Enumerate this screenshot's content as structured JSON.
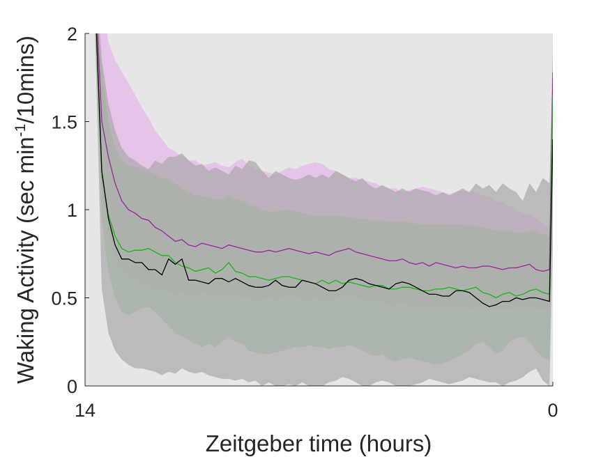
{
  "chart_data": {
    "type": "line",
    "xlabel": "Zeitgeber time (hours)",
    "ylabel": {
      "prefix": "Waking Activity (sec min",
      "superscript": "-1",
      "suffix": "/10mins)"
    },
    "xlim": [
      14,
      0
    ],
    "ylim": [
      0,
      2
    ],
    "x_ticks": [
      14,
      0
    ],
    "x_tick_labels": [
      "14",
      "0"
    ],
    "y_ticks": [
      0,
      0.5,
      1,
      1.5,
      2
    ],
    "y_tick_labels": [
      "0",
      "0.5",
      "1",
      "1.5",
      "2"
    ],
    "grid": false,
    "legend": "none",
    "background_color": "#e6e6e6",
    "x": [
      13.7,
      13.5,
      13.3,
      13.1,
      12.9,
      12.7,
      12.5,
      12.3,
      12.1,
      11.9,
      11.7,
      11.5,
      11.3,
      11.1,
      10.9,
      10.7,
      10.5,
      10.3,
      10.1,
      9.9,
      9.7,
      9.5,
      9.3,
      9.1,
      8.9,
      8.7,
      8.5,
      8.3,
      8.1,
      7.9,
      7.7,
      7.5,
      7.3,
      7.1,
      6.9,
      6.7,
      6.5,
      6.3,
      6.1,
      5.9,
      5.7,
      5.5,
      5.3,
      5.1,
      4.9,
      4.7,
      4.5,
      4.3,
      4.1,
      3.9,
      3.7,
      3.5,
      3.3,
      3.1,
      2.9,
      2.7,
      2.5,
      2.3,
      2.1,
      1.9,
      1.7,
      1.5,
      1.3,
      1.1,
      0.9,
      0.7,
      0.5,
      0.3,
      0.1,
      0.0
    ],
    "series": [
      {
        "color": "#a020a0",
        "band_color": "#e6b4e8",
        "values": [
          2.3,
          1.5,
          1.3,
          1.15,
          1.05,
          1.0,
          0.98,
          0.95,
          0.94,
          0.9,
          0.88,
          0.85,
          0.82,
          0.83,
          0.8,
          0.79,
          0.81,
          0.8,
          0.79,
          0.78,
          0.8,
          0.79,
          0.78,
          0.77,
          0.76,
          0.76,
          0.77,
          0.76,
          0.77,
          0.78,
          0.77,
          0.76,
          0.75,
          0.76,
          0.75,
          0.74,
          0.76,
          0.77,
          0.78,
          0.76,
          0.75,
          0.74,
          0.73,
          0.72,
          0.71,
          0.71,
          0.72,
          0.7,
          0.69,
          0.7,
          0.68,
          0.7,
          0.69,
          0.68,
          0.67,
          0.68,
          0.67,
          0.67,
          0.68,
          0.68,
          0.67,
          0.66,
          0.67,
          0.67,
          0.68,
          0.69,
          0.66,
          0.65,
          0.66,
          1.78
        ],
        "upper": [
          2.6,
          2.2,
          1.95,
          1.85,
          1.78,
          1.72,
          1.65,
          1.58,
          1.52,
          1.45,
          1.4,
          1.35,
          1.33,
          1.3,
          1.28,
          1.28,
          1.25,
          1.26,
          1.27,
          1.25,
          1.24,
          1.27,
          1.29,
          1.25,
          1.23,
          1.22,
          1.21,
          1.2,
          1.22,
          1.24,
          1.23,
          1.25,
          1.26,
          1.27,
          1.26,
          1.23,
          1.22,
          1.2,
          1.18,
          1.18,
          1.17,
          1.16,
          1.15,
          1.13,
          1.12,
          1.12,
          1.1,
          1.11,
          1.12,
          1.13,
          1.12,
          1.11,
          1.1,
          1.09,
          1.1,
          1.11,
          1.1,
          1.1,
          1.08,
          1.07,
          1.05,
          1.04,
          1.02,
          1.0,
          0.98,
          0.97,
          0.95,
          0.92,
          0.9,
          2.0
        ],
        "lower": [
          2.0,
          1.1,
          0.85,
          0.72,
          0.66,
          0.62,
          0.6,
          0.58,
          0.57,
          0.55,
          0.54,
          0.53,
          0.52,
          0.53,
          0.52,
          0.51,
          0.53,
          0.52,
          0.51,
          0.5,
          0.52,
          0.51,
          0.5,
          0.5,
          0.49,
          0.49,
          0.5,
          0.49,
          0.5,
          0.51,
          0.5,
          0.49,
          0.49,
          0.5,
          0.49,
          0.48,
          0.5,
          0.5,
          0.51,
          0.5,
          0.49,
          0.49,
          0.48,
          0.47,
          0.46,
          0.46,
          0.47,
          0.46,
          0.45,
          0.46,
          0.45,
          0.46,
          0.45,
          0.45,
          0.44,
          0.45,
          0.44,
          0.44,
          0.45,
          0.45,
          0.44,
          0.43,
          0.44,
          0.44,
          0.45,
          0.45,
          0.44,
          0.43,
          0.44,
          1.5
        ]
      },
      {
        "color": "#18b418",
        "band_color": "#a0cc9a",
        "values": [
          2.2,
          1.2,
          0.97,
          0.85,
          0.78,
          0.76,
          0.77,
          0.77,
          0.78,
          0.76,
          0.74,
          0.74,
          0.7,
          0.68,
          0.67,
          0.65,
          0.66,
          0.67,
          0.64,
          0.66,
          0.7,
          0.65,
          0.64,
          0.62,
          0.62,
          0.61,
          0.6,
          0.61,
          0.62,
          0.62,
          0.61,
          0.6,
          0.59,
          0.58,
          0.6,
          0.58,
          0.6,
          0.58,
          0.59,
          0.58,
          0.57,
          0.56,
          0.57,
          0.57,
          0.55,
          0.55,
          0.56,
          0.56,
          0.55,
          0.54,
          0.54,
          0.55,
          0.55,
          0.56,
          0.55,
          0.54,
          0.55,
          0.56,
          0.53,
          0.52,
          0.5,
          0.52,
          0.53,
          0.51,
          0.52,
          0.54,
          0.55,
          0.53,
          0.52,
          1.65
        ],
        "upper": [
          2.4,
          1.8,
          1.5,
          1.35,
          1.28,
          1.25,
          1.24,
          1.23,
          1.22,
          1.2,
          1.18,
          1.17,
          1.15,
          1.12,
          1.1,
          1.08,
          1.08,
          1.07,
          1.06,
          1.06,
          1.08,
          1.06,
          1.05,
          1.03,
          1.02,
          1.0,
          0.99,
          0.99,
          1.0,
          1.0,
          0.99,
          0.98,
          0.97,
          0.96,
          0.97,
          0.96,
          0.97,
          0.96,
          0.96,
          0.95,
          0.95,
          0.94,
          0.94,
          0.94,
          0.93,
          0.93,
          0.93,
          0.93,
          0.92,
          0.92,
          0.92,
          0.92,
          0.92,
          0.92,
          0.92,
          0.91,
          0.91,
          0.91,
          0.9,
          0.89,
          0.88,
          0.88,
          0.88,
          0.87,
          0.87,
          0.88,
          0.88,
          0.86,
          0.85,
          1.8
        ],
        "lower": [
          2.0,
          0.95,
          0.65,
          0.5,
          0.42,
          0.4,
          0.42,
          0.44,
          0.45,
          0.42,
          0.38,
          0.34,
          0.3,
          0.28,
          0.26,
          0.24,
          0.22,
          0.24,
          0.22,
          0.25,
          0.28,
          0.25,
          0.24,
          0.2,
          0.19,
          0.18,
          0.18,
          0.19,
          0.2,
          0.21,
          0.22,
          0.22,
          0.23,
          0.22,
          0.22,
          0.21,
          0.22,
          0.22,
          0.23,
          0.22,
          0.2,
          0.18,
          0.17,
          0.18,
          0.15,
          0.14,
          0.15,
          0.16,
          0.15,
          0.14,
          0.13,
          0.12,
          0.13,
          0.14,
          0.16,
          0.18,
          0.2,
          0.24,
          0.25,
          0.22,
          0.18,
          0.2,
          0.25,
          0.27,
          0.28,
          0.25,
          0.2,
          0.16,
          0.15,
          1.4
        ]
      },
      {
        "color": "#000000",
        "band_color": "#a8a8a8",
        "values": [
          2.2,
          1.22,
          0.95,
          0.8,
          0.72,
          0.72,
          0.7,
          0.7,
          0.66,
          0.66,
          0.63,
          0.72,
          0.69,
          0.72,
          0.6,
          0.6,
          0.59,
          0.58,
          0.61,
          0.61,
          0.59,
          0.61,
          0.59,
          0.57,
          0.56,
          0.56,
          0.57,
          0.6,
          0.57,
          0.56,
          0.56,
          0.6,
          0.59,
          0.58,
          0.56,
          0.54,
          0.54,
          0.56,
          0.6,
          0.61,
          0.6,
          0.58,
          0.57,
          0.56,
          0.55,
          0.58,
          0.59,
          0.58,
          0.56,
          0.54,
          0.52,
          0.52,
          0.51,
          0.51,
          0.54,
          0.54,
          0.53,
          0.5,
          0.47,
          0.45,
          0.46,
          0.48,
          0.48,
          0.5,
          0.49,
          0.5,
          0.5,
          0.49,
          0.48,
          1.4
        ],
        "upper": [
          2.4,
          1.85,
          1.6,
          1.45,
          1.35,
          1.3,
          1.28,
          1.25,
          1.23,
          1.28,
          1.26,
          1.3,
          1.3,
          1.32,
          1.28,
          1.25,
          1.26,
          1.22,
          1.24,
          1.22,
          1.2,
          1.25,
          1.23,
          1.28,
          1.27,
          1.22,
          1.18,
          1.22,
          1.2,
          1.18,
          1.17,
          1.18,
          1.2,
          1.18,
          1.2,
          1.18,
          1.22,
          1.2,
          1.18,
          1.16,
          1.18,
          1.14,
          1.12,
          1.14,
          1.12,
          1.1,
          1.12,
          1.1,
          1.12,
          1.11,
          1.1,
          1.08,
          1.1,
          1.08,
          1.1,
          1.12,
          1.1,
          1.15,
          1.12,
          1.14,
          1.1,
          1.15,
          1.12,
          1.1,
          1.05,
          1.15,
          1.1,
          1.18,
          1.15,
          1.9
        ],
        "lower": [
          2.0,
          0.55,
          0.3,
          0.2,
          0.15,
          0.12,
          0.1,
          0.1,
          0.09,
          0.08,
          0.06,
          0.08,
          0.07,
          0.1,
          0.08,
          0.07,
          0.08,
          0.06,
          0.05,
          0.04,
          0.04,
          0.03,
          0.04,
          0.02,
          0.03,
          0.0,
          0.02,
          0.0,
          0.0,
          0.01,
          0.0,
          0.02,
          0.0,
          0.0,
          0.0,
          0.02,
          0.03,
          0.05,
          0.04,
          0.02,
          0.0,
          0.0,
          0.02,
          0.03,
          0.02,
          0.0,
          0.0,
          0.0,
          0.01,
          0.02,
          0.04,
          0.03,
          0.02,
          0.01,
          0.02,
          0.03,
          0.05,
          0.04,
          0.03,
          0.02,
          0.02,
          0.0,
          0.02,
          0.03,
          0.05,
          0.08,
          0.1,
          0.03,
          0.0,
          0.8
        ]
      }
    ]
  }
}
